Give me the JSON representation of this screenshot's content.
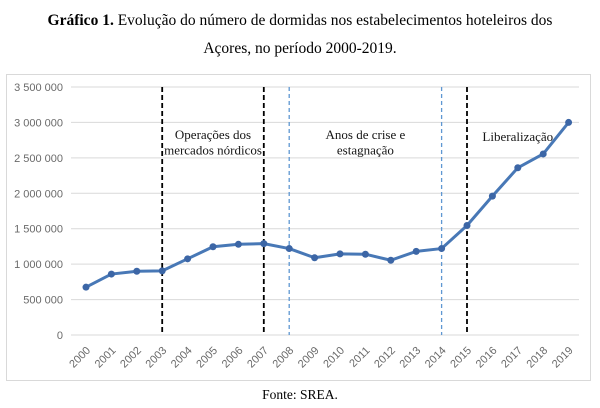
{
  "title": {
    "label": "Gráfico 1.",
    "line1": "Evolução do número de dormidas nos estabelecimentos hoteleiros dos",
    "line2": "Açores, no período 2000-2019."
  },
  "source": "Fonte: SREA.",
  "chart_data": {
    "type": "line",
    "title": "",
    "xlabel": "",
    "ylabel": "",
    "x": [
      2000,
      2001,
      2002,
      2003,
      2004,
      2005,
      2006,
      2007,
      2008,
      2009,
      2010,
      2011,
      2012,
      2013,
      2014,
      2015,
      2016,
      2017,
      2018,
      2019
    ],
    "series": [
      {
        "name": "Dormidas nos estabelecimentos hoteleiros dos Açores",
        "values": [
          675000,
          860000,
          900000,
          905000,
          1075000,
          1245000,
          1280000,
          1290000,
          1220000,
          1090000,
          1145000,
          1140000,
          1055000,
          1180000,
          1220000,
          1545000,
          1960000,
          2360000,
          2555000,
          3000000
        ]
      }
    ],
    "ylim": [
      0,
      3500000
    ],
    "yticks": [
      0,
      500000,
      1000000,
      1500000,
      2000000,
      2500000,
      3000000,
      3500000
    ],
    "ytick_labels": [
      "0",
      "500 000",
      "1 000 000",
      "1 500 000",
      "2 000 000",
      "2 500 000",
      "3 000 000",
      "3 500 000"
    ],
    "grid": true,
    "legend": "none",
    "line_color": "#4878b6",
    "marker_color": "#3c66a6",
    "gridline_color": "#d9d9d9",
    "divider_black_color": "#000000",
    "divider_blue_color": "#5f97d2",
    "dividers": [
      {
        "x": 2003,
        "color": "#000000",
        "style": "dashed"
      },
      {
        "x": 2007,
        "color": "#000000",
        "style": "dashed"
      },
      {
        "x": 2008,
        "color": "#5f97d2",
        "style": "dashed"
      },
      {
        "x": 2014,
        "color": "#5f97d2",
        "style": "dashed"
      },
      {
        "x": 2015,
        "color": "#000000",
        "style": "dashed"
      }
    ],
    "annotations": [
      {
        "lines": [
          "Operações dos",
          "mercados nórdicos"
        ],
        "between": [
          2003,
          2007
        ]
      },
      {
        "lines": [
          "Anos de crise e",
          "estagnação"
        ],
        "between": [
          2008,
          2014
        ]
      },
      {
        "lines": [
          "Liberalização"
        ],
        "between": [
          2015,
          2019
        ]
      }
    ]
  }
}
